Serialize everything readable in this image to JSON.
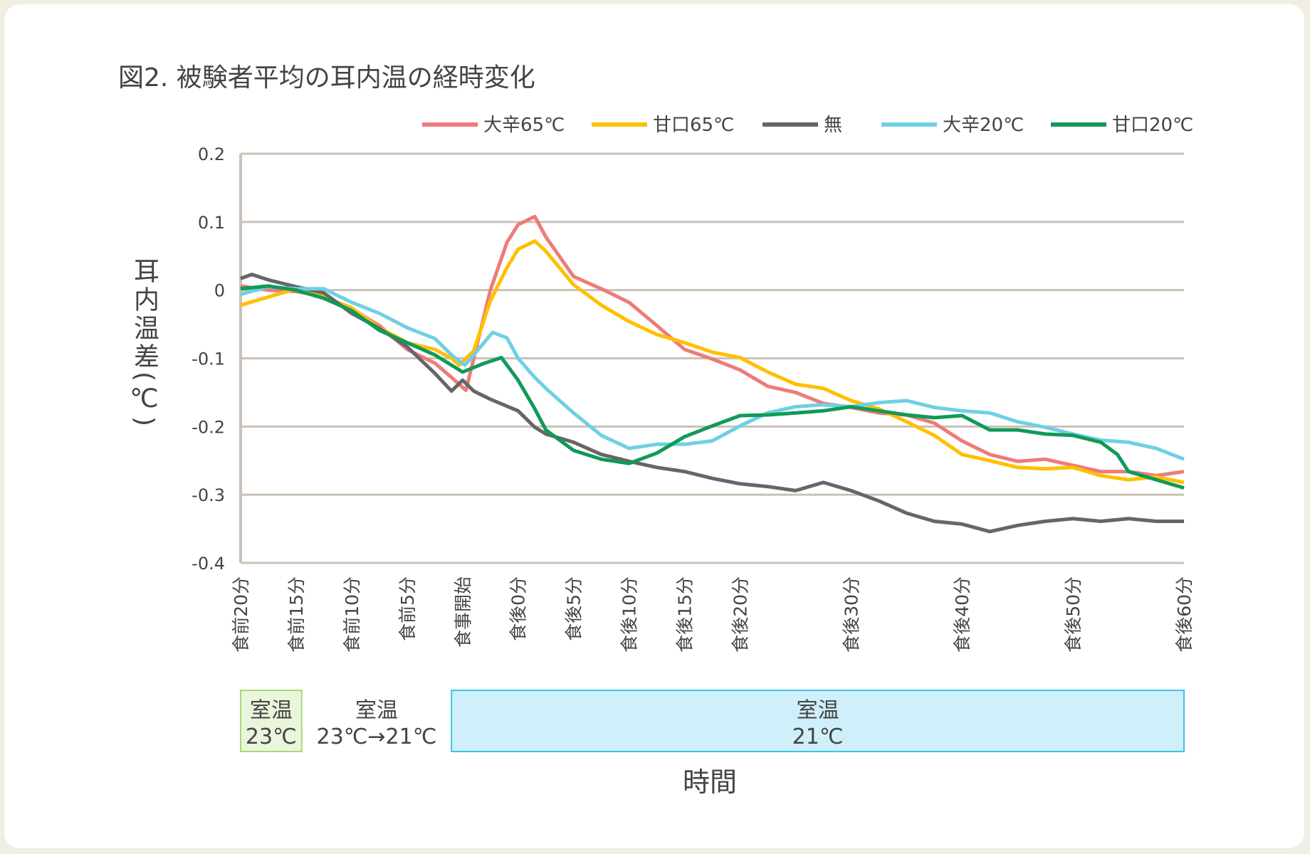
{
  "chart_data": {
    "type": "line",
    "title": "図2. 被験者平均の耳内温の経時変化",
    "xlabel": "時間",
    "ylabel": "耳内温差(℃)",
    "ylim": [
      -0.4,
      0.2
    ],
    "yticks": [
      0.2,
      0.1,
      0,
      -0.1,
      -0.2,
      -0.3,
      -0.4
    ],
    "ytick_labels": [
      "0.2",
      "0.1",
      "0",
      "-0.1",
      "-0.2",
      "-0.3",
      "-0.4"
    ],
    "x_unit": "minutes from 食事開始",
    "xlim": [
      -20,
      65
    ],
    "xticks": [
      {
        "label": "食前20分",
        "x": -20
      },
      {
        "label": "食前15分",
        "x": -15
      },
      {
        "label": "食前10分",
        "x": -10
      },
      {
        "label": "食前5分",
        "x": -5
      },
      {
        "label": "食事開始",
        "x": 0
      },
      {
        "label": "食後0分",
        "x": 5
      },
      {
        "label": "食後5分",
        "x": 10
      },
      {
        "label": "食後10分",
        "x": 15
      },
      {
        "label": "食後15分",
        "x": 20
      },
      {
        "label": "食後20分",
        "x": 25
      },
      {
        "label": "食後30分",
        "x": 35
      },
      {
        "label": "食後40分",
        "x": 45
      },
      {
        "label": "食後50分",
        "x": 55
      },
      {
        "label": "食後60分",
        "x": 65
      }
    ],
    "grid": "horizontal",
    "legend_position": "top",
    "series": [
      {
        "name": "大辛65℃",
        "color": "#ee7b7b",
        "points": [
          [
            -20,
            0.006
          ],
          [
            -17.5,
            0
          ],
          [
            -15,
            -0.002
          ],
          [
            -12.5,
            -0.009
          ],
          [
            -10,
            -0.028
          ],
          [
            -7.5,
            -0.052
          ],
          [
            -5,
            -0.087
          ],
          [
            -2.5,
            -0.107
          ],
          [
            -1,
            -0.128
          ],
          [
            0.3,
            -0.147
          ],
          [
            1,
            -0.1
          ],
          [
            2.5,
            0
          ],
          [
            4,
            0.07
          ],
          [
            5,
            0.096
          ],
          [
            6.5,
            0.108
          ],
          [
            7.5,
            0.078
          ],
          [
            10,
            0.02
          ],
          [
            12.5,
            0.002
          ],
          [
            15,
            -0.018
          ],
          [
            17.5,
            -0.052
          ],
          [
            20,
            -0.087
          ],
          [
            22.5,
            -0.101
          ],
          [
            25,
            -0.117
          ],
          [
            27.5,
            -0.141
          ],
          [
            30,
            -0.15
          ],
          [
            32.5,
            -0.166
          ],
          [
            35,
            -0.172
          ],
          [
            37.5,
            -0.18
          ],
          [
            40,
            -0.183
          ],
          [
            42.5,
            -0.195
          ],
          [
            45,
            -0.221
          ],
          [
            47.5,
            -0.241
          ],
          [
            50,
            -0.251
          ],
          [
            52.5,
            -0.248
          ],
          [
            55,
            -0.257
          ],
          [
            57.5,
            -0.266
          ],
          [
            60,
            -0.266
          ],
          [
            62.5,
            -0.272
          ],
          [
            65,
            -0.266
          ]
        ]
      },
      {
        "name": "甘口65℃",
        "color": "#ffc000",
        "points": [
          [
            -20,
            -0.022
          ],
          [
            -17.5,
            -0.01
          ],
          [
            -15,
            0.002
          ],
          [
            -12.5,
            -0.01
          ],
          [
            -10,
            -0.026
          ],
          [
            -7.5,
            -0.055
          ],
          [
            -5,
            -0.077
          ],
          [
            -2.5,
            -0.087
          ],
          [
            -1,
            -0.1
          ],
          [
            -0.3,
            -0.11
          ],
          [
            1,
            -0.089
          ],
          [
            2.5,
            -0.016
          ],
          [
            4,
            0.033
          ],
          [
            5,
            0.06
          ],
          [
            6.5,
            0.072
          ],
          [
            7.5,
            0.057
          ],
          [
            10,
            0.008
          ],
          [
            12.5,
            -0.022
          ],
          [
            15,
            -0.046
          ],
          [
            17.5,
            -0.065
          ],
          [
            20,
            -0.077
          ],
          [
            22.5,
            -0.091
          ],
          [
            25,
            -0.099
          ],
          [
            27.5,
            -0.12
          ],
          [
            30,
            -0.138
          ],
          [
            32.5,
            -0.144
          ],
          [
            35,
            -0.162
          ],
          [
            37.5,
            -0.174
          ],
          [
            40,
            -0.193
          ],
          [
            42.5,
            -0.213
          ],
          [
            45,
            -0.241
          ],
          [
            47.5,
            -0.25
          ],
          [
            50,
            -0.26
          ],
          [
            52.5,
            -0.262
          ],
          [
            55,
            -0.26
          ],
          [
            57.5,
            -0.272
          ],
          [
            60,
            -0.278
          ],
          [
            62.5,
            -0.274
          ],
          [
            65,
            -0.282
          ]
        ]
      },
      {
        "name": "無",
        "color": "#666666",
        "points": [
          [
            -20,
            0.017
          ],
          [
            -19,
            0.023
          ],
          [
            -17.5,
            0.015
          ],
          [
            -15,
            0.005
          ],
          [
            -12.5,
            -0.004
          ],
          [
            -10,
            -0.034
          ],
          [
            -7.5,
            -0.056
          ],
          [
            -5,
            -0.083
          ],
          [
            -2.5,
            -0.122
          ],
          [
            -1,
            -0.148
          ],
          [
            0,
            -0.132
          ],
          [
            1,
            -0.148
          ],
          [
            2.5,
            -0.16
          ],
          [
            5,
            -0.177
          ],
          [
            6.5,
            -0.201
          ],
          [
            7.5,
            -0.211
          ],
          [
            10,
            -0.223
          ],
          [
            12.5,
            -0.241
          ],
          [
            15,
            -0.251
          ],
          [
            17.5,
            -0.26
          ],
          [
            20,
            -0.266
          ],
          [
            22.5,
            -0.276
          ],
          [
            25,
            -0.284
          ],
          [
            27.5,
            -0.288
          ],
          [
            30,
            -0.294
          ],
          [
            32.5,
            -0.282
          ],
          [
            35,
            -0.294
          ],
          [
            37.5,
            -0.309
          ],
          [
            40,
            -0.327
          ],
          [
            42.5,
            -0.339
          ],
          [
            45,
            -0.343
          ],
          [
            47.5,
            -0.354
          ],
          [
            50,
            -0.345
          ],
          [
            52.5,
            -0.339
          ],
          [
            55,
            -0.335
          ],
          [
            57.5,
            -0.339
          ],
          [
            60,
            -0.335
          ],
          [
            62.5,
            -0.339
          ],
          [
            65,
            -0.339
          ]
        ]
      },
      {
        "name": "大辛20℃",
        "color": "#6fd0e4",
        "points": [
          [
            -20,
            -0.006
          ],
          [
            -17.5,
            0.005
          ],
          [
            -15,
            0.002
          ],
          [
            -12.5,
            0.002
          ],
          [
            -10,
            -0.018
          ],
          [
            -7.5,
            -0.034
          ],
          [
            -5,
            -0.055
          ],
          [
            -2.5,
            -0.071
          ],
          [
            -1,
            -0.095
          ],
          [
            0.2,
            -0.11
          ],
          [
            1,
            -0.095
          ],
          [
            2.7,
            -0.062
          ],
          [
            4,
            -0.07
          ],
          [
            5,
            -0.1
          ],
          [
            6.5,
            -0.128
          ],
          [
            7.5,
            -0.144
          ],
          [
            10,
            -0.18
          ],
          [
            12.5,
            -0.213
          ],
          [
            15,
            -0.232
          ],
          [
            17.5,
            -0.226
          ],
          [
            20,
            -0.226
          ],
          [
            22.5,
            -0.221
          ],
          [
            25,
            -0.199
          ],
          [
            27.5,
            -0.18
          ],
          [
            30,
            -0.171
          ],
          [
            32.5,
            -0.168
          ],
          [
            35,
            -0.171
          ],
          [
            37.5,
            -0.165
          ],
          [
            40,
            -0.162
          ],
          [
            42.5,
            -0.172
          ],
          [
            45,
            -0.177
          ],
          [
            47.5,
            -0.18
          ],
          [
            50,
            -0.193
          ],
          [
            52.5,
            -0.201
          ],
          [
            55,
            -0.211
          ],
          [
            57.5,
            -0.22
          ],
          [
            60,
            -0.223
          ],
          [
            62.5,
            -0.232
          ],
          [
            65,
            -0.248
          ]
        ]
      },
      {
        "name": "甘口20℃",
        "color": "#109a58",
        "points": [
          [
            -20,
            0.002
          ],
          [
            -17.5,
            0.006
          ],
          [
            -15,
            0
          ],
          [
            -12.5,
            -0.012
          ],
          [
            -10,
            -0.03
          ],
          [
            -7.5,
            -0.059
          ],
          [
            -5,
            -0.077
          ],
          [
            -2.5,
            -0.095
          ],
          [
            0,
            -0.12
          ],
          [
            2,
            -0.107
          ],
          [
            3.5,
            -0.099
          ],
          [
            5,
            -0.132
          ],
          [
            6.5,
            -0.174
          ],
          [
            7.5,
            -0.205
          ],
          [
            10,
            -0.235
          ],
          [
            12.5,
            -0.248
          ],
          [
            15,
            -0.254
          ],
          [
            17.5,
            -0.239
          ],
          [
            20,
            -0.215
          ],
          [
            22.5,
            -0.199
          ],
          [
            25,
            -0.184
          ],
          [
            27.5,
            -0.183
          ],
          [
            30,
            -0.18
          ],
          [
            32.5,
            -0.177
          ],
          [
            35,
            -0.171
          ],
          [
            37.5,
            -0.177
          ],
          [
            40,
            -0.183
          ],
          [
            42.5,
            -0.187
          ],
          [
            45,
            -0.184
          ],
          [
            47.5,
            -0.205
          ],
          [
            50,
            -0.205
          ],
          [
            52.5,
            -0.211
          ],
          [
            55,
            -0.213
          ],
          [
            57.5,
            -0.223
          ],
          [
            59,
            -0.241
          ],
          [
            60,
            -0.266
          ],
          [
            62.5,
            -0.278
          ],
          [
            65,
            -0.29
          ]
        ]
      }
    ],
    "room_temperature": [
      {
        "label": "室温",
        "value": "23℃",
        "from": -20,
        "to": -14.5,
        "fill": "#eaf6dc",
        "stroke": "#a8d878"
      },
      {
        "label": "室温",
        "value": "23℃→21℃",
        "from": -14.5,
        "to": -1,
        "fill": "",
        "stroke": ""
      },
      {
        "label": "室温",
        "value": "21℃",
        "from": -1,
        "to": 65,
        "fill": "#cfeffa",
        "stroke": "#3cc4f0"
      }
    ],
    "gridline_color": "#cbc1b6"
  }
}
